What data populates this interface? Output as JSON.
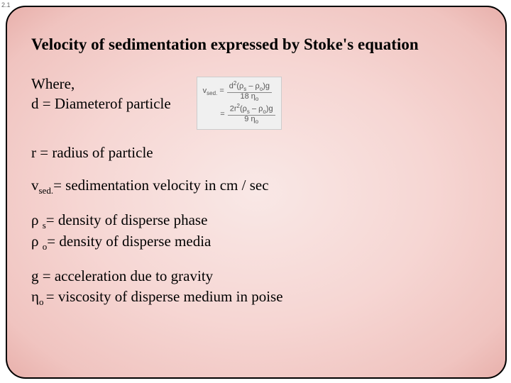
{
  "page_number": "2.1",
  "heading": "Velocity of sedimentation expressed by Stoke's equation",
  "where_label": "Where,",
  "definitions": {
    "d": "d = Diameterof particle",
    "r": "r = radius of particle",
    "vsed_prefix": "v",
    "vsed_sub": "sed.",
    "vsed_rest": "= sedimentation velocity in cm / sec",
    "rho_s_prefix": "ρ ",
    "rho_s_sub": "s",
    "rho_s_rest": "= density of disperse phase",
    "rho_o_prefix": "ρ ",
    "rho_o_sub": "o",
    "rho_o_rest": "= density of disperse media",
    "g": "g = acceleration due to gravity",
    "eta_prefix": "η",
    "eta_sub": "o ",
    "eta_rest": "= viscosity of disperse medium in poise"
  },
  "formula": {
    "line1_lhs": "v",
    "line1_lhs_sub": "sed.",
    "line1_eq": " = ",
    "line1_num_a": "d",
    "line1_num_sup": "2",
    "line1_num_b": "(ρ",
    "line1_num_sub1": "s",
    "line1_num_c": " – ρ",
    "line1_num_sub2": "o",
    "line1_num_d": ")g",
    "line1_den_a": "18 η",
    "line1_den_sub": "o",
    "line2_lhs": "= ",
    "line2_num_a": "2r",
    "line2_num_sup": "2",
    "line2_num_b": "(ρ",
    "line2_num_sub1": "s",
    "line2_num_c": " – ρ",
    "line2_num_sub2": "o",
    "line2_num_d": ")g",
    "line2_den_a": "9 η",
    "line2_den_sub": "o"
  },
  "colors": {
    "text": "#000000",
    "bg_inner": "#f9e8e6",
    "bg_outer": "#e8b0ab",
    "border": "#000000",
    "formula_bg": "#f0f0f0",
    "formula_text": "#555555"
  },
  "fonts": {
    "heading_size_pt": 17,
    "body_size_pt": 16,
    "formula_size_pt": 8
  }
}
